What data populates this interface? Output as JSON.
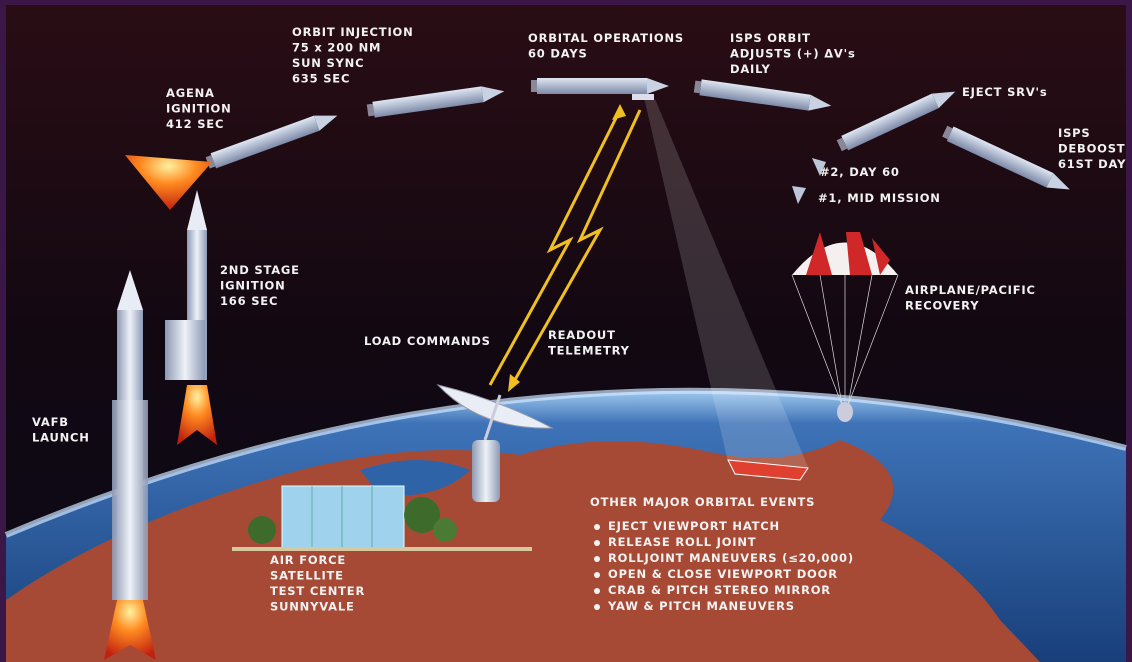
{
  "labels": [
    {
      "lines": [
        "ORBIT INJECTION",
        "75 x 200 NM",
        "SUN SYNC",
        "635 SEC"
      ]
    },
    {
      "lines": [
        "ORBITAL OPERATIONS",
        "60 DAYS"
      ]
    },
    {
      "lines": [
        "ISPS ORBIT",
        "ADJUSTS (+) ΔV's",
        "DAILY"
      ]
    },
    {
      "lines": [
        "EJECT SRV's"
      ]
    },
    {
      "lines": [
        "ISPS",
        "DEBOOST",
        "61ST DAY"
      ]
    },
    {
      "lines": [
        "AGENA",
        "IGNITION",
        "412 SEC"
      ]
    },
    {
      "lines": [
        "#2, DAY 60"
      ]
    },
    {
      "lines": [
        "#1, MID MISSION"
      ]
    },
    {
      "lines": [
        "2ND STAGE",
        "IGNITION",
        "166 SEC"
      ]
    },
    {
      "lines": [
        "AIRPLANE/PACIFIC",
        "RECOVERY"
      ]
    },
    {
      "lines": [
        "LOAD COMMANDS"
      ]
    },
    {
      "lines": [
        "READOUT",
        "TELEMETRY"
      ]
    },
    {
      "lines": [
        "VAFB",
        "LAUNCH"
      ]
    },
    {
      "lines": [
        "AIR FORCE",
        "SATELLITE",
        "TEST CENTER",
        "SUNNYVALE"
      ]
    }
  ],
  "events": {
    "title": "OTHER MAJOR ORBITAL EVENTS",
    "items": [
      "EJECT VIEWPORT HATCH",
      "RELEASE ROLL JOINT",
      "ROLLJOINT MANEUVERS (≤20,000)",
      "OPEN & CLOSE VIEWPORT DOOR",
      "CRAB & PITCH STEREO MIRROR",
      "YAW & PITCH MANEUVERS"
    ]
  }
}
